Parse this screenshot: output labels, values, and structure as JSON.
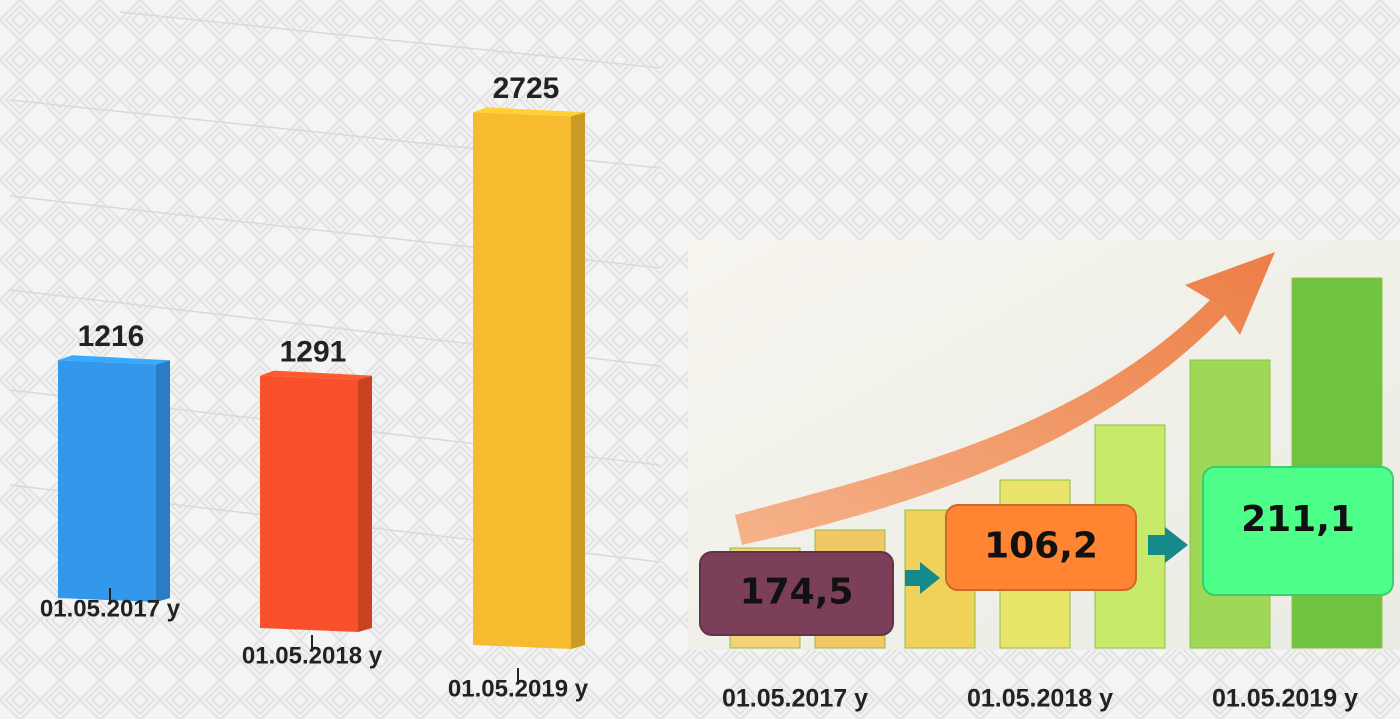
{
  "chart_data": [
    {
      "type": "bar3d",
      "categories": [
        "01.05.2017 y",
        "01.05.2018 y",
        "01.05.2019 y"
      ],
      "values": [
        1216,
        1291,
        2725
      ],
      "colors": [
        "#3398ec",
        "#f7502a",
        "#f6bb2e"
      ]
    },
    {
      "type": "boxes",
      "categories": [
        "01.05.2017 y",
        "01.05.2018 y",
        "01.05.2019 y"
      ],
      "values": [
        174.5,
        106.2,
        211.1
      ],
      "value_labels": [
        "174,5",
        "106,2",
        "211,1"
      ],
      "colors": [
        "#7b3f5a",
        "#ff8533",
        "#4dff88"
      ]
    }
  ]
}
